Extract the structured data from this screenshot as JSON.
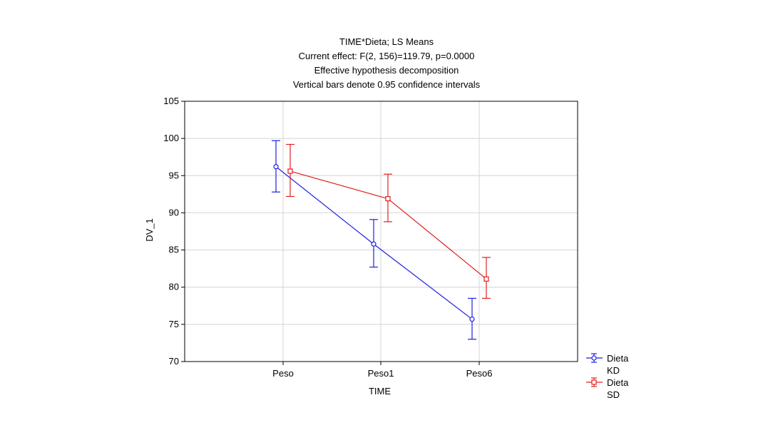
{
  "chart_data": {
    "type": "line",
    "title_lines": [
      "TIME*Dieta; LS Means",
      "Current effect: F(2, 156)=119.79, p=0.0000",
      "Effective hypothesis decomposition",
      "Vertical bars denote 0.95 confidence intervals"
    ],
    "xlabel": "TIME",
    "ylabel": "DV_1",
    "categories": [
      "Peso",
      "Peso1",
      "Peso6"
    ],
    "ylim": [
      70,
      105
    ],
    "yticks": [
      70,
      75,
      80,
      85,
      90,
      95,
      100,
      105
    ],
    "grid": true,
    "legend_position": "bottom-right",
    "series": [
      {
        "legend_label": [
          "Dieta",
          "KD"
        ],
        "color": "#1f1fe0",
        "marker": "circle",
        "values": [
          96.2,
          85.8,
          75.7
        ],
        "ci_low": [
          92.8,
          82.7,
          73.0
        ],
        "ci_high": [
          99.7,
          89.1,
          78.5
        ]
      },
      {
        "legend_label": [
          "Dieta",
          "SD"
        ],
        "color": "#e02020",
        "marker": "square",
        "values": [
          95.6,
          91.9,
          81.1
        ],
        "ci_low": [
          92.2,
          88.8,
          78.5
        ],
        "ci_high": [
          99.2,
          95.2,
          84.0
        ]
      }
    ]
  }
}
